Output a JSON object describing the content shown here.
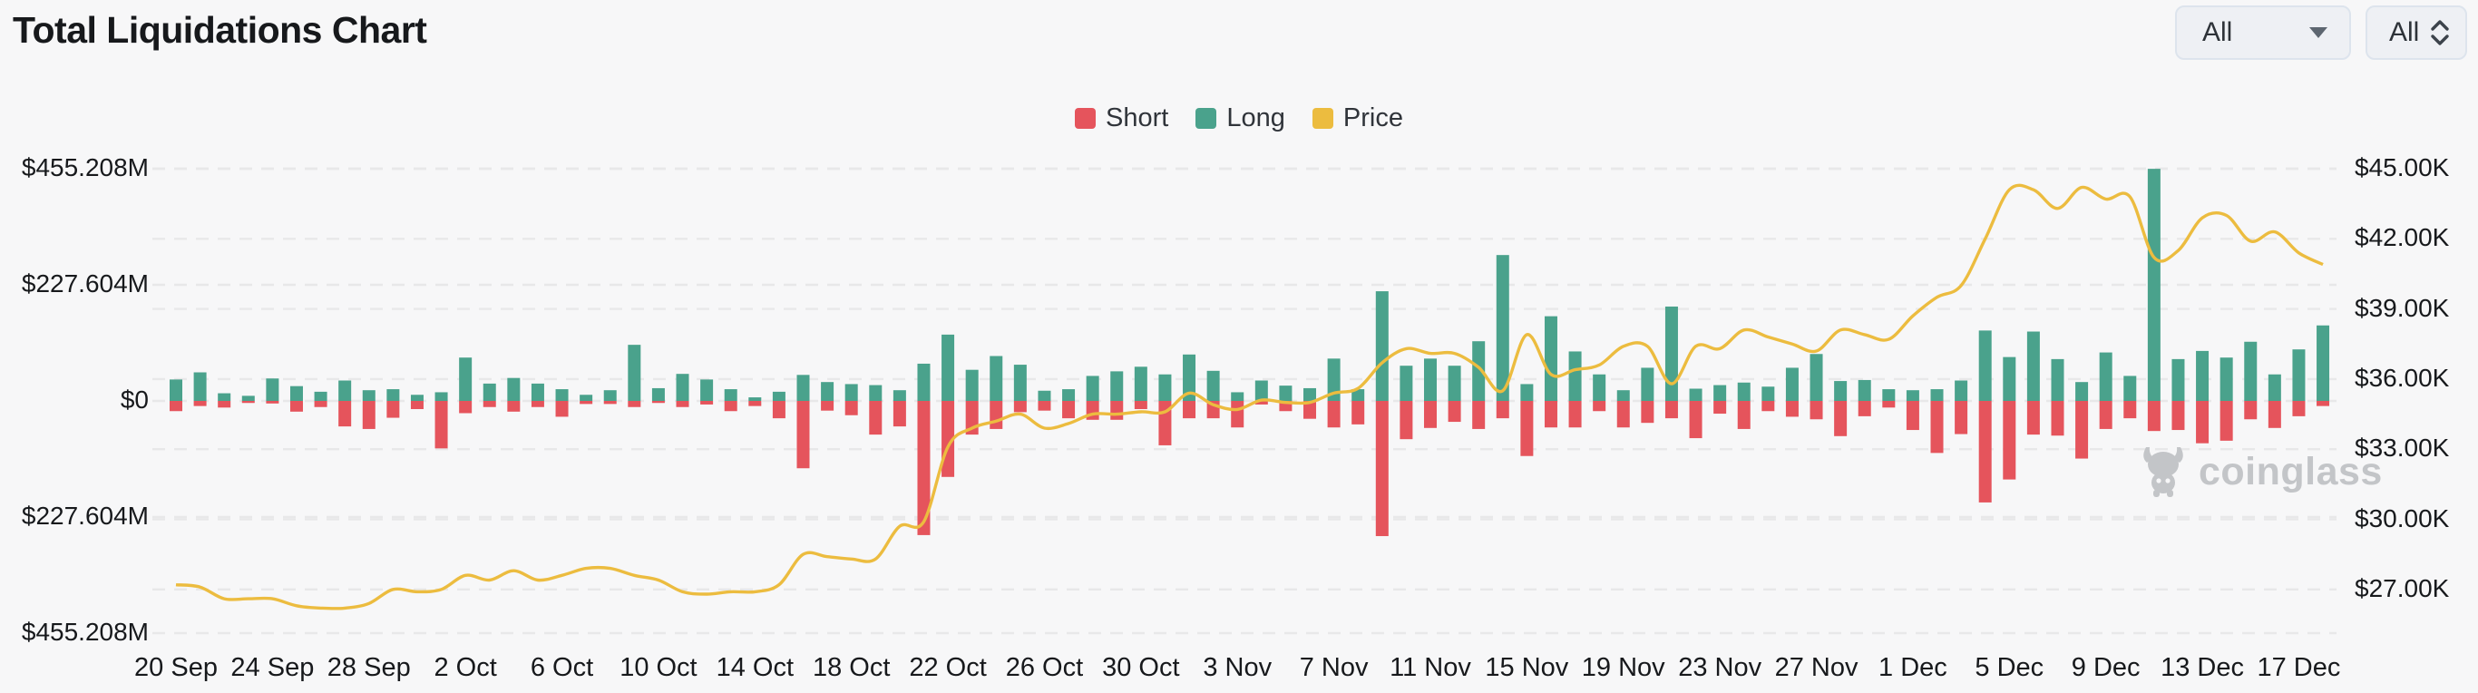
{
  "header": {
    "title": "Total Liquidations Chart"
  },
  "filters": {
    "dropdowns": [
      {
        "value": "All",
        "icon": "caret-down-icon"
      },
      {
        "value": "All",
        "icon": "unfold-icon"
      }
    ]
  },
  "legend": [
    {
      "label": "Short",
      "color": "#e5545c"
    },
    {
      "label": "Long",
      "color": "#4aa28c"
    },
    {
      "label": "Price",
      "color": "#ecbc3f"
    }
  ],
  "watermark": {
    "text": "coinglass"
  },
  "chart_data": {
    "type": "bar-line-combo",
    "title": "Total Liquidations Chart",
    "grid": "dashed",
    "legend_position": "top-center",
    "bars_per_tick": 4,
    "x_tick_labels": [
      "20 Sep",
      "24 Sep",
      "28 Sep",
      "2 Oct",
      "6 Oct",
      "10 Oct",
      "14 Oct",
      "18 Oct",
      "22 Oct",
      "26 Oct",
      "30 Oct",
      "3 Nov",
      "7 Nov",
      "11 Nov",
      "15 Nov",
      "19 Nov",
      "23 Nov",
      "27 Nov",
      "1 Dec",
      "5 Dec",
      "9 Dec",
      "13 Dec",
      "17 Dec"
    ],
    "left_axis": {
      "tick_labels": [
        "$455.208M",
        "$227.604M",
        "$0",
        "$227.604M",
        "$455.208M"
      ],
      "tick_values_M": [
        455.208,
        227.604,
        0,
        -227.604,
        -455.208
      ]
    },
    "right_axis": {
      "tick_labels": [
        "$45.00K",
        "$42.00K",
        "$39.00K",
        "$36.00K",
        "$33.00K",
        "$30.00K",
        "$27.00K"
      ],
      "tick_values_K": [
        45,
        42,
        39,
        36,
        33,
        30,
        27
      ]
    },
    "series": [
      {
        "name": "Long",
        "type": "bar",
        "direction": "up",
        "color": "#4aa28c",
        "values_M": [
          42,
          56,
          15,
          10,
          44,
          29,
          18,
          40,
          21,
          23,
          12,
          17,
          85,
          34,
          45,
          34,
          23,
          12,
          21,
          110,
          25,
          53,
          42,
          23,
          7,
          18,
          51,
          37,
          33,
          31,
          21,
          73,
          130,
          61,
          88,
          71,
          20,
          23,
          49,
          58,
          67,
          52,
          91,
          59,
          17,
          40,
          30,
          25,
          83,
          23,
          215,
          69,
          83,
          69,
          117,
          286,
          33,
          166,
          97,
          52,
          21,
          65,
          185,
          24,
          31,
          36,
          28,
          65,
          92,
          39,
          41,
          23,
          21,
          23,
          40,
          138,
          86,
          136,
          82,
          37,
          95,
          49,
          455,
          82,
          98,
          85,
          116,
          52,
          101,
          148
        ]
      },
      {
        "name": "Short",
        "type": "bar",
        "direction": "down",
        "color": "#e5545c",
        "values_M": [
          20,
          10,
          13,
          4,
          5,
          21,
          12,
          50,
          55,
          33,
          16,
          93,
          24,
          12,
          21,
          12,
          31,
          6,
          6,
          12,
          4,
          12,
          7,
          20,
          10,
          34,
          132,
          19,
          28,
          66,
          50,
          263,
          149,
          66,
          55,
          22,
          19,
          34,
          37,
          37,
          16,
          87,
          34,
          34,
          52,
          7,
          20,
          35,
          52,
          46,
          265,
          75,
          53,
          41,
          55,
          34,
          108,
          52,
          52,
          20,
          52,
          43,
          34,
          73,
          25,
          55,
          20,
          31,
          36,
          69,
          30,
          13,
          57,
          102,
          65,
          199,
          154,
          66,
          68,
          113,
          55,
          34,
          59,
          57,
          83,
          78,
          36,
          53,
          30,
          10
        ]
      },
      {
        "name": "Price",
        "type": "line",
        "color": "#ecbc3f",
        "values_K": [
          27.2,
          27.1,
          26.6,
          26.6,
          26.6,
          26.3,
          26.2,
          26.2,
          26.4,
          27.0,
          26.9,
          27.0,
          27.6,
          27.4,
          27.8,
          27.4,
          27.6,
          27.9,
          27.9,
          27.6,
          27.4,
          26.9,
          26.8,
          26.9,
          26.9,
          27.2,
          28.5,
          28.4,
          28.3,
          28.3,
          29.7,
          29.9,
          33.1,
          33.9,
          34.2,
          34.5,
          33.9,
          34.1,
          34.5,
          34.5,
          34.6,
          34.6,
          35.4,
          34.9,
          34.7,
          35.1,
          35.0,
          35.0,
          35.4,
          35.6,
          36.7,
          37.3,
          37.1,
          37.1,
          36.5,
          35.5,
          37.9,
          36.2,
          36.4,
          36.6,
          37.4,
          37.4,
          35.8,
          37.4,
          37.3,
          38.1,
          37.8,
          37.5,
          37.2,
          38.1,
          37.9,
          37.7,
          38.7,
          39.5,
          40.0,
          42.0,
          44.1,
          44.1,
          43.3,
          44.2,
          43.7,
          43.8,
          41.2,
          41.5,
          42.9,
          43.0,
          41.9,
          42.3,
          41.4,
          40.9
        ]
      }
    ]
  }
}
